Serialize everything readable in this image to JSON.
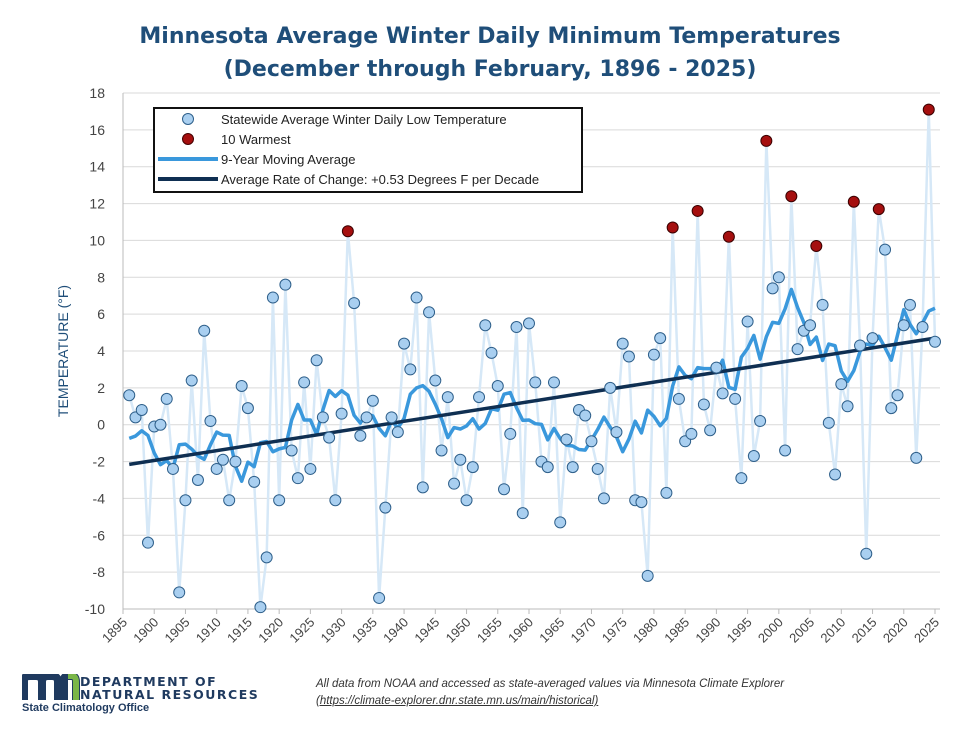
{
  "chart_data": {
    "type": "line",
    "title": "Minnesota Average Winter Daily Minimum Temperatures",
    "subtitle": "(December through February, 1896 - 2025)",
    "ylabel": "TEMPERATURE (°F)",
    "xlabel": "",
    "xlim": [
      1895,
      2025
    ],
    "ylim": [
      -10,
      18
    ],
    "yticks": [
      -10,
      -8,
      -6,
      -4,
      -2,
      0,
      2,
      4,
      6,
      8,
      10,
      12,
      14,
      16,
      18
    ],
    "xticks": [
      1895,
      1900,
      1905,
      1910,
      1915,
      1920,
      1925,
      1930,
      1935,
      1940,
      1945,
      1950,
      1955,
      1960,
      1965,
      1970,
      1975,
      1980,
      1985,
      1990,
      1995,
      2000,
      2005,
      2010,
      2015,
      2020,
      2025
    ],
    "grid": true,
    "legend_position": "top-left",
    "legend": [
      "Statewide Average Winter Daily Low Temperature",
      "10 Warmest",
      "9-Year Moving Average",
      "Average Rate of Change: +0.53 Degrees F per Decade"
    ],
    "start_year": 1896,
    "values": [
      1.6,
      0.4,
      0.8,
      -6.4,
      -0.1,
      0.0,
      1.4,
      -2.4,
      -9.1,
      -4.1,
      2.4,
      -3.0,
      5.1,
      0.2,
      -2.4,
      -1.9,
      -4.1,
      -2.0,
      2.1,
      0.9,
      -3.1,
      -9.9,
      -7.2,
      6.9,
      -4.1,
      7.6,
      -1.4,
      -2.9,
      2.3,
      -2.4,
      3.5,
      0.4,
      -0.7,
      -4.1,
      0.6,
      10.5,
      6.6,
      -0.6,
      0.4,
      1.3,
      -9.4,
      -4.5,
      0.4,
      -0.4,
      4.4,
      3.0,
      6.9,
      -3.4,
      6.1,
      2.4,
      -1.4,
      1.5,
      -3.2,
      -1.9,
      -4.1,
      -2.3,
      1.5,
      5.4,
      3.9,
      2.1,
      -3.5,
      -0.5,
      5.3,
      -4.8,
      5.5,
      2.3,
      -2.0,
      -2.3,
      2.3,
      -5.3,
      -0.8,
      -2.3,
      0.8,
      0.5,
      -0.9,
      -2.4,
      -4.0,
      2.0,
      -0.4,
      4.4,
      3.7,
      -4.1,
      -4.2,
      -8.2,
      3.8,
      4.7,
      -3.7,
      10.7,
      1.4,
      -0.9,
      -0.5,
      11.6,
      1.1,
      -0.3,
      3.1,
      1.7,
      10.2,
      1.4,
      -2.9,
      5.6,
      -1.7,
      0.2,
      15.4,
      7.4,
      8.0,
      -1.4,
      12.4,
      4.1,
      5.1,
      5.4,
      9.7,
      6.5,
      0.1,
      -2.7,
      2.2,
      1.0,
      12.1,
      4.3,
      -7.0,
      4.7,
      11.7,
      9.5,
      0.9,
      1.6,
      5.4,
      6.5,
      -1.8,
      5.3,
      17.1,
      4.5
    ],
    "warmest_years": [
      1931,
      1983,
      1987,
      1992,
      1998,
      2002,
      2006,
      2012,
      2016,
      2024
    ],
    "moving_average_window": 9,
    "trend": {
      "x": [
        1896,
        2025
      ],
      "y": [
        -2.15,
        4.7
      ],
      "rate_per_decade": 0.53
    },
    "colors": {
      "points": "#a9cff0",
      "point_edge": "#2e5f8a",
      "warmest": "#a50f0f",
      "connector": "#d6e8f7",
      "moving_average": "#3a98dc",
      "trend": "#0f2f52",
      "title": "#1f4e79"
    }
  },
  "footer": {
    "org_line1": "DEPARTMENT OF",
    "org_line2": "NATURAL RESOURCES",
    "office": "State Climatology Office",
    "note_line1": "All data from NOAA and accessed as state-averaged values via Minnesota Climate Explorer",
    "note_link": "(https://climate-explorer.dnr.state.mn.us/main/historical)"
  }
}
